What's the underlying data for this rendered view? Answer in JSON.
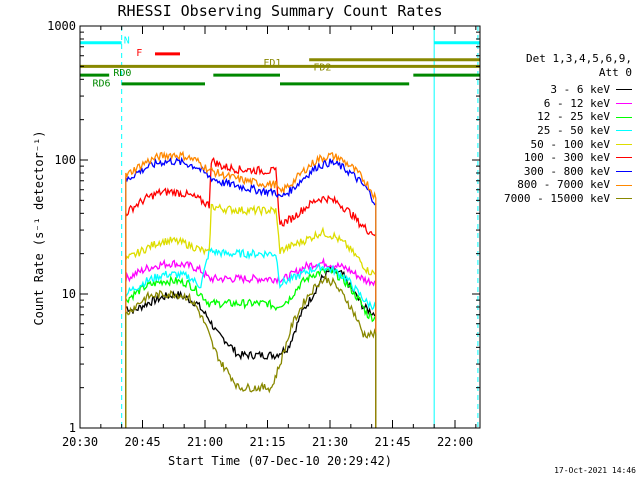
{
  "chart_data": {
    "type": "line",
    "title": "RHESSI Observing Summary Count Rates",
    "xlabel": "Start Time (07-Dec-10 20:29:42)",
    "ylabel": "Count Rate (s⁻¹ detector⁻¹)",
    "yscale": "log",
    "ylim": [
      1,
      1000
    ],
    "xlim_minutes": [
      0,
      96
    ],
    "x_ticks": [
      "20:30",
      "20:45",
      "21:00",
      "21:15",
      "21:30",
      "21:45",
      "22:00"
    ],
    "x_tick_minutes": [
      0,
      15,
      30,
      45,
      60,
      75,
      90
    ],
    "y_ticks": [
      "1",
      "10",
      "100",
      "1000"
    ],
    "y_tick_values": [
      1,
      10,
      100,
      1000
    ],
    "legend_title": [
      "Det 1,3,4,5,6,9,",
      "Att 0"
    ],
    "legend_placement": "right",
    "series": [
      {
        "name": "3 - 6 keV",
        "color": "#000000",
        "points": [
          [
            11,
            8
          ],
          [
            13,
            7.5
          ],
          [
            16,
            8.5
          ],
          [
            20,
            9.5
          ],
          [
            23,
            10
          ],
          [
            25,
            9.5
          ],
          [
            28,
            8.5
          ],
          [
            31,
            6.5
          ],
          [
            33,
            5
          ],
          [
            35,
            4.5
          ],
          [
            38,
            3.5
          ],
          [
            41,
            3.5
          ],
          [
            44,
            3.5
          ],
          [
            47,
            3.5
          ],
          [
            50,
            4
          ],
          [
            53,
            7
          ],
          [
            56,
            10
          ],
          [
            58,
            13
          ],
          [
            60,
            15
          ],
          [
            63,
            14
          ],
          [
            66,
            10
          ],
          [
            68,
            8
          ],
          [
            71,
            7
          ]
        ]
      },
      {
        "name": "6 - 12 keV",
        "color": "#ff00ff",
        "points": [
          [
            11,
            13
          ],
          [
            13,
            14
          ],
          [
            16,
            15.5
          ],
          [
            19,
            16.5
          ],
          [
            22,
            17
          ],
          [
            25,
            16.5
          ],
          [
            27,
            16
          ],
          [
            29,
            15
          ],
          [
            31,
            13
          ],
          [
            36,
            13
          ],
          [
            41,
            13
          ],
          [
            45,
            13
          ],
          [
            47,
            13
          ],
          [
            49,
            13
          ],
          [
            51,
            14
          ],
          [
            54,
            16
          ],
          [
            57,
            17
          ],
          [
            59,
            17
          ],
          [
            61,
            16.5
          ],
          [
            64,
            15.5
          ],
          [
            67,
            13.5
          ],
          [
            69,
            12.5
          ],
          [
            71,
            12.5
          ]
        ]
      },
      {
        "name": "12 - 25 keV",
        "color": "#00ff00",
        "points": [
          [
            11,
            9
          ],
          [
            13,
            10
          ],
          [
            16,
            11.5
          ],
          [
            20,
            12.5
          ],
          [
            23,
            12.5
          ],
          [
            26,
            12
          ],
          [
            29,
            10
          ],
          [
            31,
            8.5
          ],
          [
            36,
            8.5
          ],
          [
            41,
            8.5
          ],
          [
            45,
            8.5
          ],
          [
            47,
            8
          ],
          [
            50,
            9
          ],
          [
            53,
            12
          ],
          [
            56,
            14
          ],
          [
            59,
            15
          ],
          [
            61,
            14.5
          ],
          [
            64,
            12
          ],
          [
            67,
            9
          ],
          [
            69,
            7
          ],
          [
            71,
            6.5
          ]
        ]
      },
      {
        "name": "25 - 50 keV",
        "color": "#00ffff",
        "points": [
          [
            11,
            10
          ],
          [
            13,
            11
          ],
          [
            16,
            12.5
          ],
          [
            20,
            14
          ],
          [
            23,
            14
          ],
          [
            26,
            13.5
          ],
          [
            29,
            11.5
          ],
          [
            31,
            21
          ],
          [
            35,
            20
          ],
          [
            40,
            20
          ],
          [
            45,
            20
          ],
          [
            47,
            20
          ],
          [
            48,
            12
          ],
          [
            51,
            13
          ],
          [
            55,
            15
          ],
          [
            58,
            16
          ],
          [
            61,
            15
          ],
          [
            64,
            13
          ],
          [
            67,
            10
          ],
          [
            69,
            8.5
          ],
          [
            71,
            8
          ]
        ]
      },
      {
        "name": "50 - 100 keV",
        "color": "#dddd00",
        "points": [
          [
            11,
            18
          ],
          [
            13,
            19.5
          ],
          [
            16,
            22
          ],
          [
            19,
            24.5
          ],
          [
            22,
            25
          ],
          [
            25,
            24
          ],
          [
            28,
            22
          ],
          [
            31,
            20
          ],
          [
            31.5,
            45
          ],
          [
            35,
            43
          ],
          [
            40,
            42
          ],
          [
            45,
            42
          ],
          [
            47,
            42
          ],
          [
            48,
            21
          ],
          [
            51,
            23
          ],
          [
            55,
            26
          ],
          [
            58,
            29
          ],
          [
            61,
            27
          ],
          [
            64,
            23
          ],
          [
            67,
            18
          ],
          [
            69,
            15
          ],
          [
            71,
            14
          ]
        ]
      },
      {
        "name": "100 - 300 keV",
        "color": "#ff0000",
        "points": [
          [
            11,
            40
          ],
          [
            13,
            45
          ],
          [
            16,
            52
          ],
          [
            19,
            57
          ],
          [
            22,
            58
          ],
          [
            25,
            56
          ],
          [
            28,
            52
          ],
          [
            31,
            46
          ],
          [
            31.5,
            100
          ],
          [
            34,
            90
          ],
          [
            38,
            85
          ],
          [
            42,
            84
          ],
          [
            45,
            83
          ],
          [
            47,
            82
          ],
          [
            48,
            33
          ],
          [
            51,
            37
          ],
          [
            54,
            44
          ],
          [
            57,
            51
          ],
          [
            59,
            52
          ],
          [
            62,
            48
          ],
          [
            65,
            40
          ],
          [
            67,
            34
          ],
          [
            69,
            30
          ],
          [
            71,
            28
          ]
        ]
      },
      {
        "name": "300 - 800 keV",
        "color": "#0000ff",
        "points": [
          [
            11,
            70
          ],
          [
            13,
            78
          ],
          [
            16,
            88
          ],
          [
            19,
            96
          ],
          [
            22,
            98
          ],
          [
            25,
            95
          ],
          [
            28,
            89
          ],
          [
            31,
            75
          ],
          [
            34,
            68
          ],
          [
            38,
            64
          ],
          [
            42,
            60
          ],
          [
            45,
            58
          ],
          [
            47,
            58
          ],
          [
            48,
            52
          ],
          [
            51,
            61
          ],
          [
            54,
            75
          ],
          [
            57,
            90
          ],
          [
            60,
            96
          ],
          [
            62,
            92
          ],
          [
            65,
            80
          ],
          [
            67,
            70
          ],
          [
            69,
            60
          ],
          [
            71,
            47
          ]
        ]
      },
      {
        "name": "800 - 7000 keV",
        "color": "#ff8800",
        "points": [
          [
            11,
            76
          ],
          [
            13,
            85
          ],
          [
            16,
            97
          ],
          [
            19,
            106
          ],
          [
            22,
            110
          ],
          [
            25,
            107
          ],
          [
            28,
            99
          ],
          [
            31,
            84
          ],
          [
            34,
            78
          ],
          [
            38,
            72
          ],
          [
            42,
            68
          ],
          [
            45,
            66
          ],
          [
            47,
            66
          ],
          [
            48,
            57
          ],
          [
            51,
            68
          ],
          [
            54,
            85
          ],
          [
            57,
            101
          ],
          [
            60,
            108
          ],
          [
            62,
            104
          ],
          [
            65,
            90
          ],
          [
            67,
            78
          ],
          [
            69,
            66
          ],
          [
            71,
            52
          ]
        ]
      },
      {
        "name": "7000 - 15000 keV",
        "color": "#888800",
        "points": [
          [
            11,
            7
          ],
          [
            13,
            8
          ],
          [
            16,
            9.5
          ],
          [
            20,
            10
          ],
          [
            23,
            10
          ],
          [
            26,
            9.5
          ],
          [
            28,
            8
          ],
          [
            30,
            6
          ],
          [
            32,
            4
          ],
          [
            34,
            3
          ],
          [
            36,
            2.5
          ],
          [
            38,
            2
          ],
          [
            42,
            2
          ],
          [
            46,
            2
          ],
          [
            48,
            3
          ],
          [
            51,
            6
          ],
          [
            54,
            9
          ],
          [
            57,
            12
          ],
          [
            59,
            13
          ],
          [
            61,
            12
          ],
          [
            64,
            9
          ],
          [
            66,
            7
          ],
          [
            68,
            5
          ],
          [
            71,
            5
          ]
        ]
      }
    ],
    "state_bars": [
      {
        "label": "N",
        "color": "#00ffff",
        "y": 750,
        "segments": [
          [
            0,
            10
          ],
          [
            85,
            96
          ]
        ]
      },
      {
        "label": "F",
        "color": "#ff0000",
        "y": 620,
        "segments": [
          [
            18,
            24
          ]
        ]
      },
      {
        "label": "FD1",
        "color": "#888800",
        "y": 500,
        "segments": [
          [
            0,
            96
          ]
        ]
      },
      {
        "label": "FD2",
        "color": "#888800",
        "y": 560,
        "segments": [
          [
            55,
            96
          ]
        ]
      },
      {
        "label": "RD0",
        "color": "#008800",
        "y": 430,
        "segments": [
          [
            0,
            7
          ],
          [
            32,
            48
          ],
          [
            80,
            96
          ]
        ]
      },
      {
        "label": "RD6",
        "color": "#008800",
        "y": 370,
        "segments": [
          [
            10,
            30
          ],
          [
            48,
            79
          ]
        ]
      }
    ],
    "vlines": [
      {
        "x": 0,
        "color": "#00ffff",
        "style": "solid"
      },
      {
        "x": 10,
        "color": "#00ffff",
        "style": "dashed"
      },
      {
        "x": 85,
        "color": "#00ffff",
        "style": "solid"
      },
      {
        "x": 95.5,
        "color": "#00ffff",
        "style": "dashed"
      }
    ],
    "timestamp": "17-Oct-2021 14:46"
  }
}
